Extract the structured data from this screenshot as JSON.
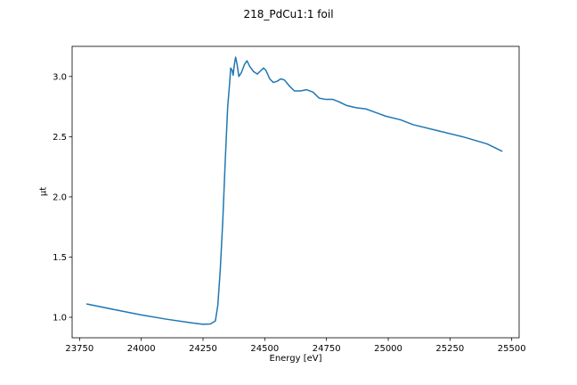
{
  "chart_data": {
    "type": "line",
    "title": "218_PdCu1:1 foil",
    "xlabel": "Energy [eV]",
    "ylabel": "μt",
    "xlim": [
      23720,
      25530
    ],
    "ylim": [
      0.83,
      3.25
    ],
    "xticks": [
      23750,
      24000,
      24250,
      24500,
      24750,
      25000,
      25250,
      25500
    ],
    "xtick_labels": [
      "23750",
      "24000",
      "24250",
      "24500",
      "24750",
      "25000",
      "25250",
      "25500"
    ],
    "yticks": [
      1.0,
      1.5,
      2.0,
      2.5,
      3.0
    ],
    "ytick_labels": [
      "1.0",
      "1.5",
      "2.0",
      "2.5",
      "3.0"
    ],
    "grid": false,
    "color": "#1f77b4",
    "series": [
      {
        "points": [
          [
            23780,
            1.11
          ],
          [
            23900,
            1.06
          ],
          [
            24000,
            1.02
          ],
          [
            24100,
            0.985
          ],
          [
            24200,
            0.955
          ],
          [
            24250,
            0.942
          ],
          [
            24280,
            0.945
          ],
          [
            24300,
            0.97
          ],
          [
            24310,
            1.1
          ],
          [
            24320,
            1.4
          ],
          [
            24330,
            1.8
          ],
          [
            24340,
            2.3
          ],
          [
            24350,
            2.75
          ],
          [
            24358,
            2.95
          ],
          [
            24362,
            3.07
          ],
          [
            24368,
            3.05
          ],
          [
            24372,
            3.01
          ],
          [
            24377,
            3.1
          ],
          [
            24382,
            3.16
          ],
          [
            24388,
            3.1
          ],
          [
            24395,
            3.0
          ],
          [
            24405,
            3.03
          ],
          [
            24418,
            3.1
          ],
          [
            24428,
            3.13
          ],
          [
            24440,
            3.08
          ],
          [
            24455,
            3.04
          ],
          [
            24470,
            3.02
          ],
          [
            24485,
            3.05
          ],
          [
            24495,
            3.07
          ],
          [
            24505,
            3.05
          ],
          [
            24520,
            2.98
          ],
          [
            24535,
            2.95
          ],
          [
            24550,
            2.96
          ],
          [
            24565,
            2.98
          ],
          [
            24580,
            2.97
          ],
          [
            24600,
            2.92
          ],
          [
            24620,
            2.88
          ],
          [
            24645,
            2.88
          ],
          [
            24670,
            2.89
          ],
          [
            24695,
            2.87
          ],
          [
            24720,
            2.82
          ],
          [
            24745,
            2.81
          ],
          [
            24775,
            2.81
          ],
          [
            24800,
            2.79
          ],
          [
            24830,
            2.76
          ],
          [
            24870,
            2.74
          ],
          [
            24910,
            2.73
          ],
          [
            24950,
            2.7
          ],
          [
            24990,
            2.67
          ],
          [
            25050,
            2.64
          ],
          [
            25100,
            2.6
          ],
          [
            25200,
            2.55
          ],
          [
            25300,
            2.5
          ],
          [
            25400,
            2.44
          ],
          [
            25460,
            2.38
          ]
        ]
      }
    ]
  }
}
